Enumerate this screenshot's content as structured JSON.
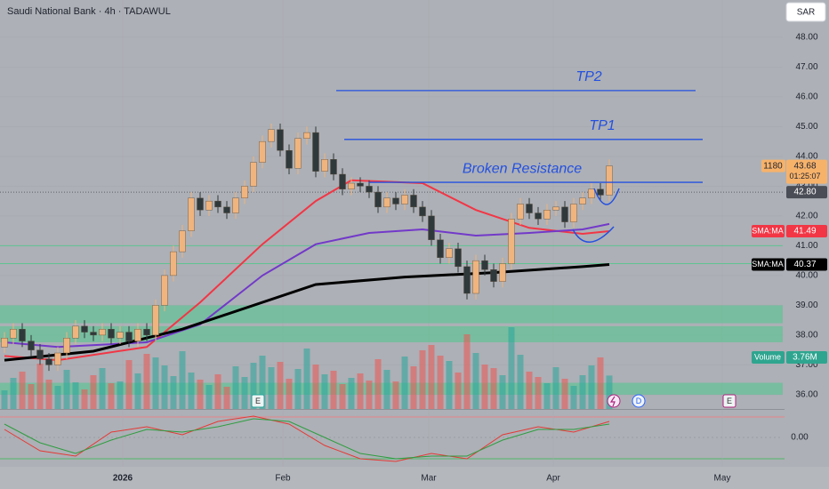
{
  "chart_data": {
    "type": "candlestick",
    "title": "Saudi National Bank · 4h · TADAWUL",
    "currency": "SAR",
    "xlim": [
      -0.5,
      87.5
    ],
    "xticks": [
      {
        "value": 13.3,
        "label": "2026"
      },
      {
        "value": 31.3,
        "label": "Feb"
      },
      {
        "value": 47.7,
        "label": "Mar"
      },
      {
        "value": 61.7,
        "label": "Apr"
      },
      {
        "value": 80.7,
        "label": "May"
      }
    ],
    "ylim": [
      35.52,
      49.25
    ],
    "yticks": [
      {
        "value": 48,
        "label": "48.00"
      },
      {
        "value": 47,
        "label": "47.00"
      },
      {
        "value": 46,
        "label": "46.00"
      },
      {
        "value": 45,
        "label": "45.00"
      },
      {
        "value": 44,
        "label": "44.00"
      },
      {
        "value": 43,
        "label": "43.00"
      },
      {
        "value": 42,
        "label": "42.00"
      },
      {
        "value": 41,
        "label": "41.00"
      },
      {
        "value": 40,
        "label": "40.00"
      },
      {
        "value": 39,
        "label": "39.00"
      },
      {
        "value": 38,
        "label": "38.00"
      },
      {
        "value": 37,
        "label": "37.00"
      },
      {
        "value": 36,
        "label": "36.00"
      }
    ],
    "up_color": "#f0b47e",
    "down_color": "#2f393b",
    "open": [
      37.6,
      37.9,
      38.2,
      37.8,
      37.5,
      37.2,
      37.0,
      37.4,
      37.9,
      38.3,
      38.1,
      38.0,
      38.2,
      37.9,
      38.1,
      37.8,
      38.2,
      38.0,
      39.0,
      40.0,
      40.8,
      41.5,
      42.6,
      42.2,
      42.5,
      42.3,
      42.1,
      42.6,
      43.0,
      43.8,
      44.5,
      44.9,
      44.2,
      43.6,
      44.6,
      44.8,
      43.5,
      43.9,
      43.4,
      42.9,
      43.1,
      43.0,
      42.8,
      42.3,
      42.6,
      42.4,
      42.7,
      42.3,
      42.0,
      41.2,
      40.6,
      40.9,
      40.3,
      39.4,
      40.5,
      40.2,
      39.8,
      40.4,
      41.9,
      42.4,
      42.1,
      41.9,
      42.2,
      42.3,
      41.8,
      42.4,
      42.6,
      42.9,
      42.7
    ],
    "high": [
      38.1,
      38.4,
      38.4,
      38.0,
      37.7,
      37.4,
      37.6,
      38.1,
      38.5,
      38.5,
      38.3,
      38.4,
      38.4,
      38.3,
      38.3,
      38.4,
      38.4,
      39.2,
      40.2,
      41.0,
      41.7,
      42.8,
      42.8,
      42.7,
      42.7,
      42.5,
      42.8,
      43.2,
      44.0,
      44.7,
      45.1,
      45.1,
      44.4,
      44.8,
      45.0,
      45.0,
      44.1,
      44.1,
      43.6,
      43.3,
      43.3,
      43.2,
      43.0,
      42.8,
      42.8,
      42.9,
      42.9,
      42.5,
      42.2,
      41.4,
      41.1,
      41.1,
      40.5,
      40.7,
      40.7,
      40.4,
      40.6,
      42.1,
      42.6,
      42.6,
      42.3,
      42.4,
      42.5,
      42.5,
      42.6,
      42.8,
      43.1,
      43.1,
      43.9
    ],
    "low": [
      37.4,
      37.7,
      37.6,
      37.3,
      37.0,
      36.8,
      36.8,
      37.2,
      37.7,
      37.9,
      37.8,
      37.8,
      37.7,
      37.7,
      37.6,
      37.6,
      37.8,
      37.8,
      38.8,
      39.8,
      40.6,
      41.3,
      42.0,
      42.0,
      42.1,
      41.9,
      41.9,
      42.4,
      42.8,
      43.6,
      44.3,
      44.0,
      43.4,
      43.4,
      44.4,
      43.3,
      43.3,
      43.2,
      42.7,
      42.7,
      42.8,
      42.6,
      42.1,
      42.1,
      42.2,
      42.2,
      42.1,
      41.8,
      41.0,
      40.4,
      40.4,
      40.1,
      39.2,
      39.2,
      40.0,
      39.6,
      39.6,
      40.2,
      41.7,
      41.9,
      41.7,
      41.7,
      42.0,
      41.6,
      41.6,
      42.2,
      42.4,
      42.5,
      42.5
    ],
    "close": [
      37.9,
      38.2,
      37.8,
      37.5,
      37.2,
      37.0,
      37.4,
      37.9,
      38.3,
      38.1,
      38.0,
      38.2,
      37.9,
      38.1,
      37.8,
      38.2,
      38.0,
      39.0,
      40.0,
      40.8,
      41.5,
      42.6,
      42.2,
      42.5,
      42.3,
      42.1,
      42.6,
      43.0,
      43.8,
      44.5,
      44.9,
      44.2,
      43.6,
      44.6,
      44.8,
      43.5,
      43.9,
      43.4,
      42.9,
      43.1,
      43.0,
      42.8,
      42.3,
      42.6,
      42.4,
      42.7,
      42.3,
      42.0,
      41.2,
      40.6,
      40.9,
      40.3,
      39.4,
      40.5,
      40.2,
      39.8,
      40.4,
      41.9,
      42.4,
      42.1,
      41.9,
      42.2,
      42.3,
      41.8,
      42.4,
      42.6,
      42.9,
      42.7,
      43.68
    ],
    "volume": {
      "name": "Volume",
      "ylim": [
        0,
        10
      ],
      "last_label": "3.76M",
      "up_color": "rgba(38,166,154,0.55)",
      "down_color": "rgba(239,83,80,0.55)",
      "values": [
        2.1,
        3.5,
        4.2,
        2.8,
        5.1,
        3.3,
        2.6,
        4.4,
        3.0,
        2.2,
        3.8,
        4.6,
        2.9,
        3.1,
        5.5,
        4.0,
        6.2,
        5.8,
        4.9,
        3.7,
        6.5,
        4.1,
        3.3,
        2.7,
        3.9,
        2.5,
        4.8,
        3.6,
        5.2,
        6.0,
        4.7,
        5.3,
        3.4,
        4.5,
        6.8,
        5.0,
        3.9,
        4.3,
        2.8,
        3.5,
        4.0,
        3.2,
        5.6,
        4.4,
        3.1,
        5.9,
        4.8,
        6.6,
        7.2,
        6.0,
        5.4,
        4.1,
        8.4,
        6.3,
        5.0,
        4.6,
        3.8,
        9.2,
        6.1,
        4.2,
        3.6,
        2.9,
        4.7,
        3.4,
        2.6,
        3.8,
        4.9,
        5.8,
        3.76
      ]
    },
    "series": [
      {
        "name": "SMA:MA",
        "color": "#f23645",
        "x": [
          0,
          6,
          16,
          22,
          29,
          35,
          39,
          47,
          53,
          59,
          65,
          68
        ],
        "values": [
          37.3,
          37.16,
          37.6,
          39.1,
          41.05,
          42.5,
          43.2,
          43.1,
          42.2,
          41.6,
          41.4,
          41.49
        ]
      },
      {
        "color": "#7239c9",
        "x": [
          0,
          6,
          16,
          22,
          29,
          35,
          41,
          47,
          53,
          59,
          65,
          68
        ],
        "values": [
          37.76,
          37.6,
          37.76,
          38.36,
          40.0,
          41.05,
          41.43,
          41.55,
          41.34,
          41.43,
          41.55,
          41.73
        ]
      },
      {
        "name": "SMA:MA",
        "color": "#000000",
        "x": [
          0,
          10,
          20,
          35,
          45,
          55,
          65,
          68
        ],
        "values": [
          37.16,
          37.46,
          38.2,
          39.7,
          39.95,
          40.1,
          40.3,
          40.37
        ]
      }
    ],
    "levels": [
      {
        "label": "TP2",
        "value": 46.21,
        "x": [
          37.3,
          77.7
        ]
      },
      {
        "label": "TP1",
        "value": 44.57,
        "x": [
          38.2,
          78.5
        ]
      },
      {
        "label": "Broken Resistance",
        "value": 43.13,
        "x": [
          41,
          78.5
        ]
      }
    ],
    "level_color": "#2450e0",
    "ref_line": {
      "value": 42.8,
      "label": "42.80"
    },
    "zones": [
      [
        38.4,
        39.0
      ],
      [
        37.76,
        38.3
      ],
      [
        36.0,
        36.4
      ]
    ],
    "zone_color": "rgba(76,200,140,0.55)",
    "support_lines": [
      41.0,
      40.4
    ],
    "badge": "1180",
    "countdown": "01:25:07",
    "events": [
      {
        "x": 28.5,
        "label": "E"
      },
      {
        "x": 71.3,
        "label": "D"
      },
      {
        "x": 81.5,
        "label": "E"
      }
    ],
    "oscillator": {
      "ylim": [
        -1,
        1
      ],
      "yticks": [
        {
          "value": 0,
          "label": "0.00"
        }
      ],
      "x": [
        0,
        4,
        8,
        12,
        16,
        20,
        24,
        28,
        32,
        36,
        40,
        44,
        48,
        52,
        56,
        60,
        64,
        68
      ],
      "series": [
        {
          "color": "#e53935",
          "values": [
            0.3,
            -0.5,
            -0.7,
            0.2,
            0.4,
            0.1,
            0.6,
            0.8,
            0.5,
            -0.3,
            -0.8,
            -0.9,
            -0.6,
            -0.8,
            0.1,
            0.4,
            0.2,
            0.6
          ]
        },
        {
          "color": "#2e9d40",
          "values": [
            0.5,
            -0.2,
            -0.6,
            -0.1,
            0.3,
            0.2,
            0.4,
            0.7,
            0.6,
            0.0,
            -0.6,
            -0.8,
            -0.7,
            -0.7,
            -0.1,
            0.3,
            0.3,
            0.5
          ]
        }
      ]
    }
  }
}
